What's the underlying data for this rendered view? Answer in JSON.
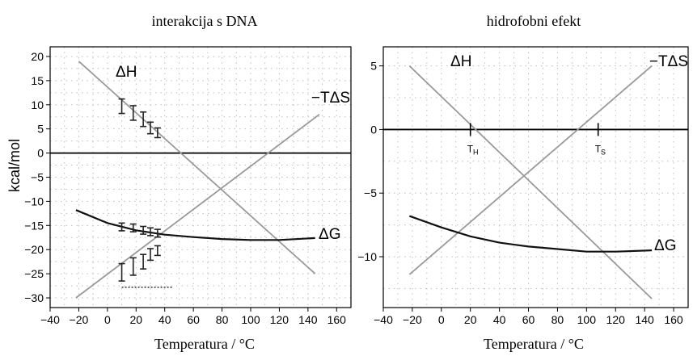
{
  "colors": {
    "property_line": "#999999",
    "dg_line": "#111111",
    "zero_line": "#000000",
    "grid": "#bdbdbd",
    "frame": "#000000"
  },
  "chart_data": [
    {
      "type": "line",
      "title": "interakcija s DNA",
      "xlabel": "Temperatura / °C",
      "ylabel": "kcal/mol",
      "xlim": [
        -40,
        170
      ],
      "ylim": [
        -32,
        22
      ],
      "xticks": [
        -40,
        -20,
        0,
        20,
        40,
        60,
        80,
        100,
        120,
        140,
        160
      ],
      "yticks": [
        20,
        15,
        10,
        5,
        0,
        -5,
        -10,
        -15,
        -20,
        -25,
        -30
      ],
      "grid": true,
      "hline": 0,
      "series": [
        {
          "name": "ΔH",
          "label": "ΔH",
          "x": [
            -20,
            145
          ],
          "y": [
            19,
            -25
          ]
        },
        {
          "name": "−TΔS",
          "label": "−TΔS",
          "x": [
            -22,
            148
          ],
          "y": [
            -30,
            8
          ]
        },
        {
          "name": "ΔG",
          "label": "ΔG",
          "x": [
            -22,
            0,
            20,
            40,
            60,
            80,
            100,
            120,
            145
          ],
          "y": [
            -11.8,
            -14.5,
            -16.0,
            -16.9,
            -17.4,
            -17.8,
            -18.0,
            -18.0,
            -17.6
          ]
        }
      ],
      "error_bars": [
        {
          "series": "ΔH",
          "x": [
            10,
            18,
            25,
            30,
            35
          ],
          "y": [
            9.7,
            8.3,
            7.0,
            5.2,
            4.2
          ],
          "err": [
            1.5,
            1.5,
            1.5,
            1.2,
            1.0
          ]
        },
        {
          "series": "ΔG",
          "x": [
            10,
            18,
            25,
            30,
            35
          ],
          "y": [
            -15.3,
            -15.5,
            -16.0,
            -16.3,
            -16.6
          ],
          "err": [
            0.8,
            0.8,
            0.8,
            0.8,
            0.8
          ]
        },
        {
          "series": "−TΔS",
          "x": [
            10,
            18,
            25,
            30,
            35
          ],
          "y": [
            -24.7,
            -23.5,
            -22.5,
            -21.0,
            -20.2
          ],
          "err": [
            1.8,
            1.8,
            1.5,
            1.2,
            1.0
          ]
        }
      ],
      "dotted_segment": {
        "x": [
          10,
          45
        ],
        "y": -27.8
      }
    },
    {
      "type": "line",
      "title": "hidrofobni efekt",
      "xlabel": "Temperatura / °C",
      "ylabel": "",
      "xlim": [
        -40,
        170
      ],
      "ylim": [
        -14,
        6.5
      ],
      "xticks": [
        -40,
        -20,
        0,
        20,
        40,
        60,
        80,
        100,
        120,
        140,
        160
      ],
      "yticks": [
        5,
        0,
        -5,
        -10
      ],
      "grid": true,
      "hline": 0,
      "series": [
        {
          "name": "ΔH",
          "label": "ΔH",
          "x": [
            -22,
            145
          ],
          "y": [
            5,
            -13.3
          ]
        },
        {
          "name": "−TΔS",
          "label": "−TΔS",
          "x": [
            -22,
            145
          ],
          "y": [
            -11.4,
            5
          ]
        },
        {
          "name": "ΔG",
          "label": "ΔG",
          "x": [
            -22,
            0,
            20,
            40,
            60,
            80,
            100,
            120,
            145
          ],
          "y": [
            -6.8,
            -7.7,
            -8.4,
            -8.9,
            -9.2,
            -9.4,
            -9.6,
            -9.6,
            -9.5
          ]
        }
      ],
      "markers": [
        {
          "label": "T",
          "sub": "H",
          "x": 20
        },
        {
          "label": "T",
          "sub": "S",
          "x": 108
        }
      ]
    }
  ]
}
